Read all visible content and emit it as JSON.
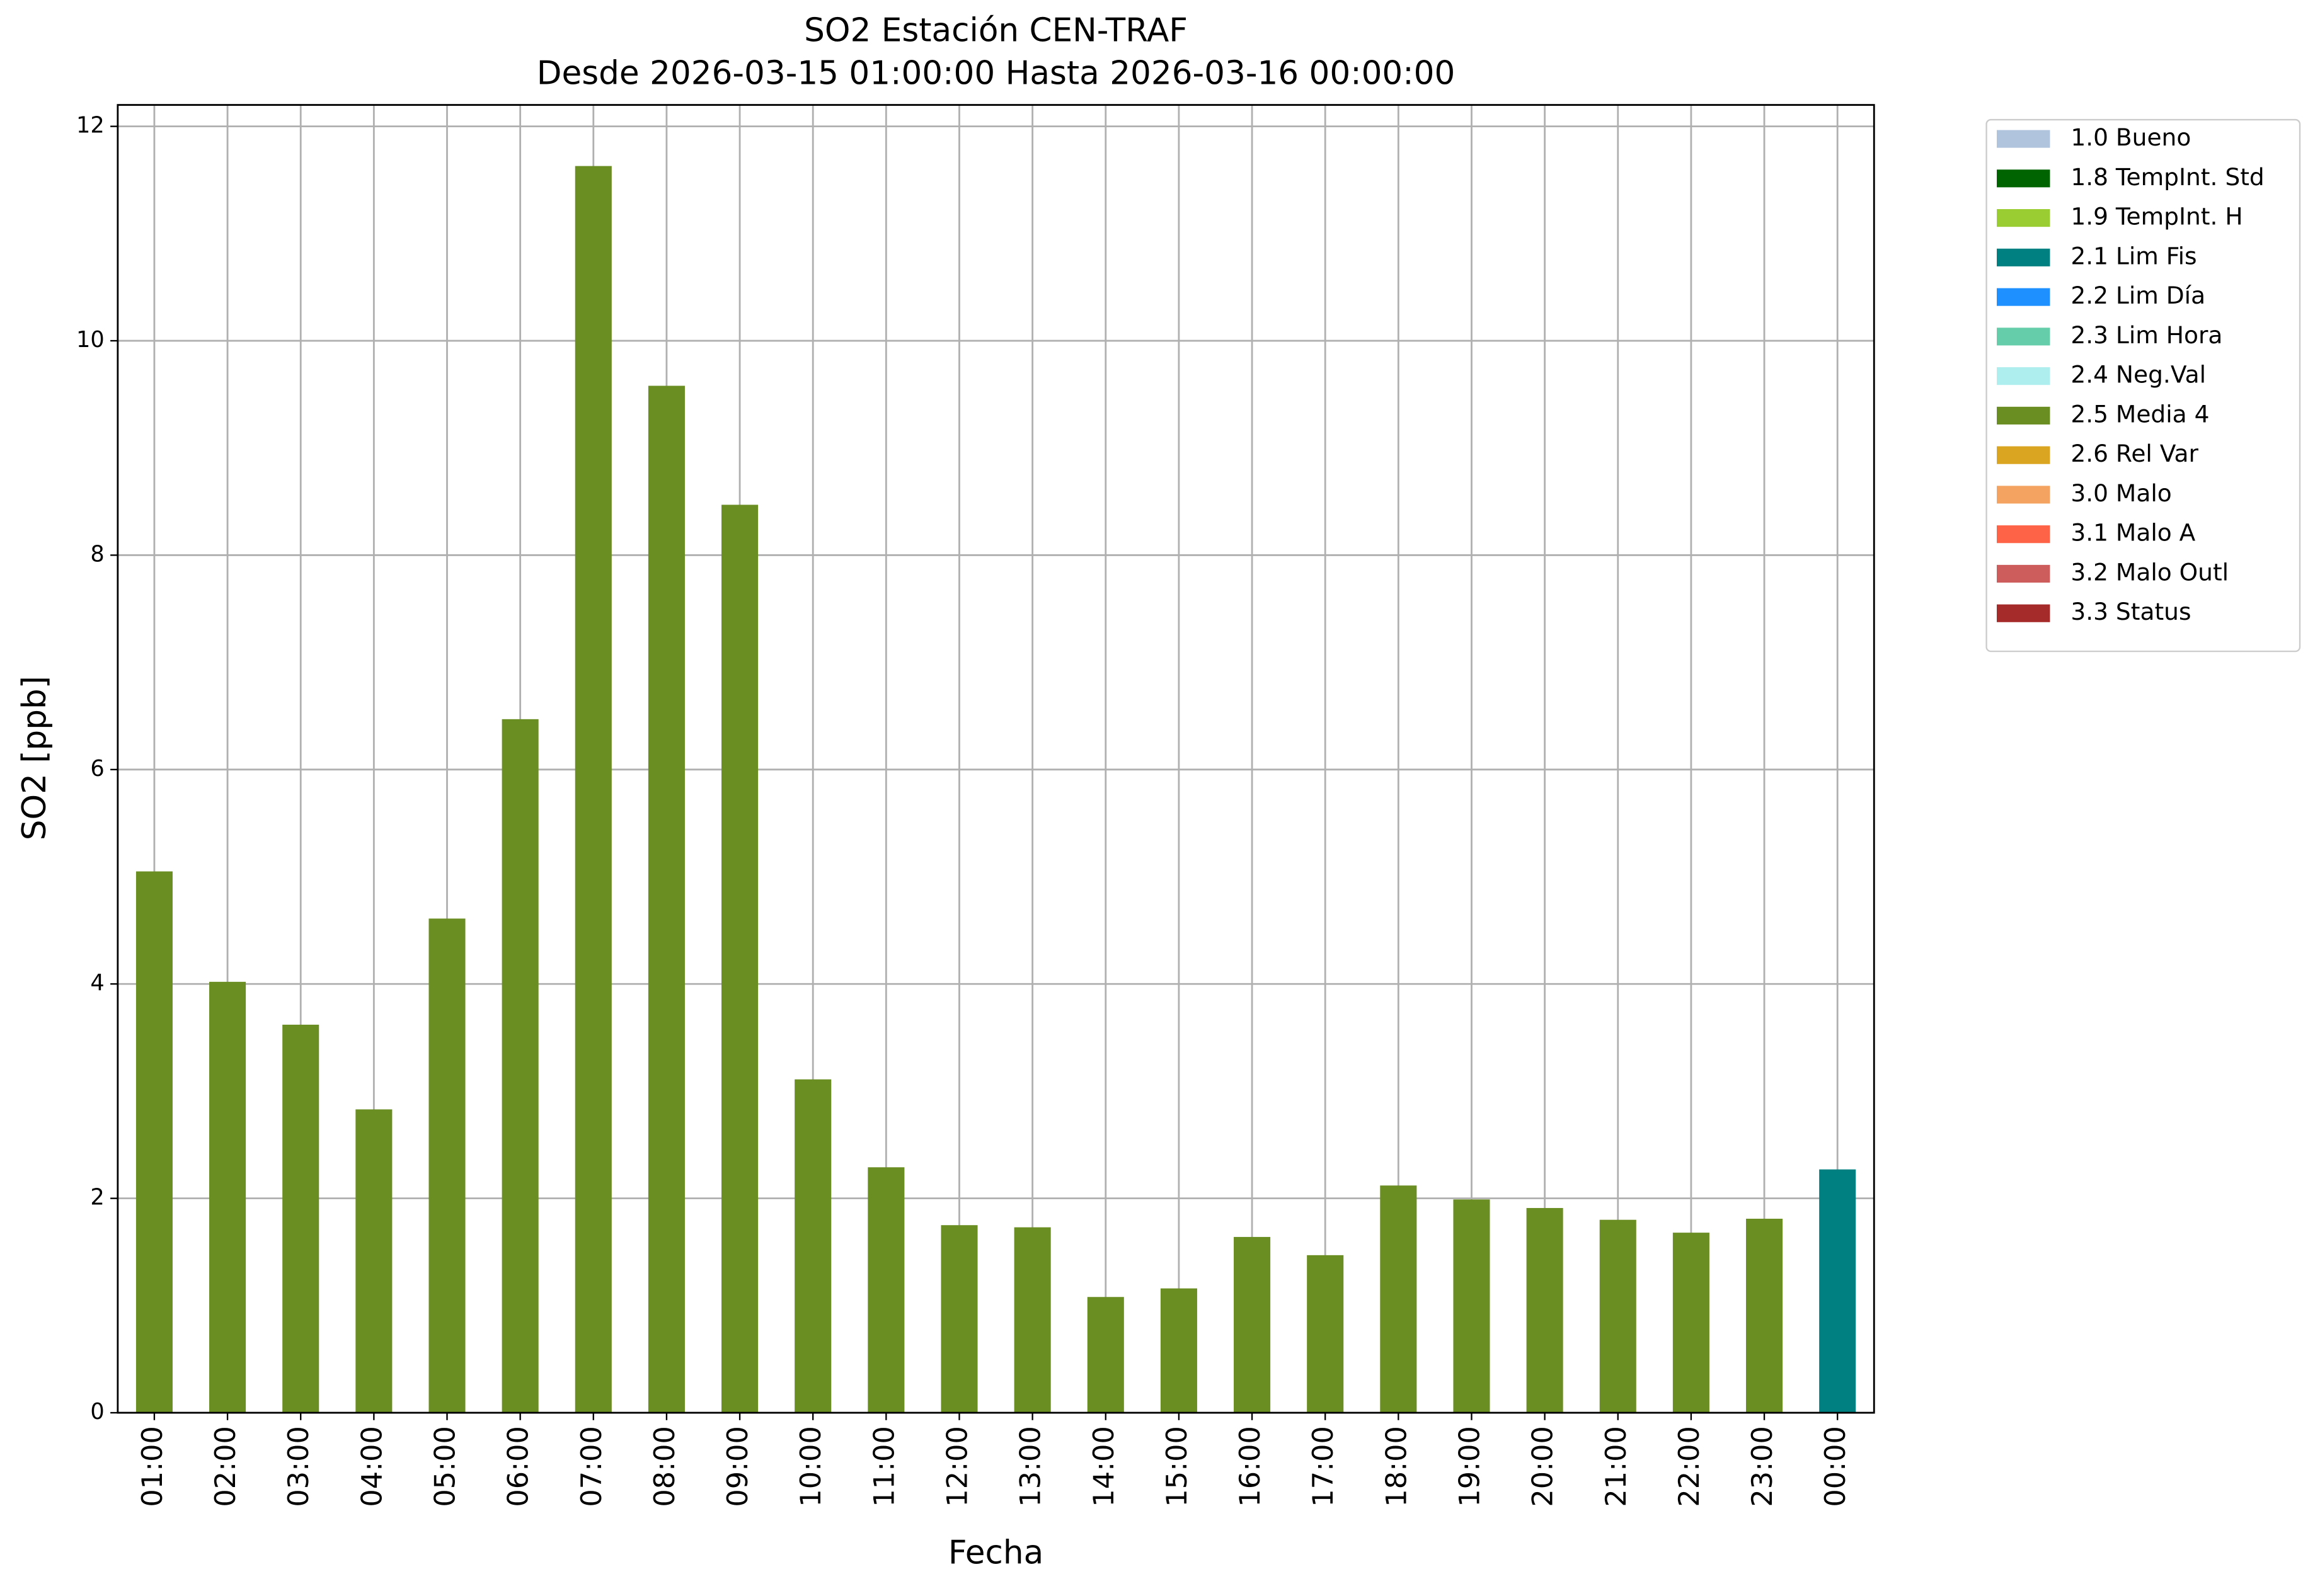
{
  "chart_data": {
    "type": "bar",
    "title": "SO2 Estación CEN-TRAF",
    "subtitle": "Desde 2026-03-15 01:00:00 Hasta 2026-03-16 00:00:00",
    "x_label": "Fecha",
    "y_label": "SO2 [ppb]",
    "categories": [
      "01:00",
      "02:00",
      "03:00",
      "04:00",
      "05:00",
      "06:00",
      "07:00",
      "08:00",
      "09:00",
      "10:00",
      "11:00",
      "12:00",
      "13:00",
      "14:00",
      "15:00",
      "16:00",
      "17:00",
      "18:00",
      "19:00",
      "20:00",
      "21:00",
      "22:00",
      "23:00",
      "00:00"
    ],
    "series": [
      {
        "name": "1.0 Bueno",
        "color": "#b0c4de",
        "values": [
          null,
          null,
          null,
          null,
          null,
          null,
          null,
          null,
          null,
          null,
          null,
          null,
          null,
          null,
          null,
          null,
          null,
          null,
          null,
          null,
          null,
          null,
          null,
          null
        ]
      },
      {
        "name": "1.8 TempInt. Std",
        "color": "#006400",
        "values": [
          null,
          null,
          null,
          null,
          null,
          null,
          null,
          null,
          null,
          null,
          null,
          null,
          null,
          null,
          null,
          null,
          null,
          null,
          null,
          null,
          null,
          null,
          null,
          null
        ]
      },
      {
        "name": "1.9 TempInt. H",
        "color": "#9acd32",
        "values": [
          null,
          null,
          null,
          null,
          null,
          null,
          null,
          null,
          null,
          null,
          null,
          null,
          null,
          null,
          null,
          null,
          null,
          null,
          null,
          null,
          null,
          null,
          null,
          null
        ]
      },
      {
        "name": "2.1 Lim Fis",
        "color": "#008080",
        "values": [
          null,
          null,
          null,
          null,
          null,
          null,
          null,
          null,
          null,
          null,
          null,
          null,
          null,
          null,
          null,
          null,
          null,
          null,
          null,
          null,
          null,
          null,
          null,
          2.27
        ]
      },
      {
        "name": "2.2 Lim Día",
        "color": "#1e90ff",
        "values": [
          null,
          null,
          null,
          null,
          null,
          null,
          null,
          null,
          null,
          null,
          null,
          null,
          null,
          null,
          null,
          null,
          null,
          null,
          null,
          null,
          null,
          null,
          null,
          null
        ]
      },
      {
        "name": "2.3 Lim Hora",
        "color": "#66cdaa",
        "values": [
          null,
          null,
          null,
          null,
          null,
          null,
          null,
          null,
          null,
          null,
          null,
          null,
          null,
          null,
          null,
          null,
          null,
          null,
          null,
          null,
          null,
          null,
          null,
          null
        ]
      },
      {
        "name": "2.4 Neg.Val",
        "color": "#afeeee",
        "values": [
          null,
          null,
          null,
          null,
          null,
          null,
          null,
          null,
          null,
          null,
          null,
          null,
          null,
          null,
          null,
          null,
          null,
          null,
          null,
          null,
          null,
          null,
          null,
          null
        ]
      },
      {
        "name": "2.5 Media 4",
        "color": "#6b8e23",
        "values": [
          5.05,
          4.02,
          3.62,
          2.83,
          4.61,
          6.47,
          11.63,
          9.58,
          8.47,
          3.11,
          2.29,
          1.75,
          1.73,
          1.08,
          1.16,
          1.64,
          1.47,
          2.12,
          1.99,
          1.91,
          1.8,
          1.68,
          1.81,
          null
        ]
      },
      {
        "name": "2.6 Rel Var",
        "color": "#daa520",
        "values": [
          null,
          null,
          null,
          null,
          null,
          null,
          null,
          null,
          null,
          null,
          null,
          null,
          null,
          null,
          null,
          null,
          null,
          null,
          null,
          null,
          null,
          null,
          null,
          null
        ]
      },
      {
        "name": "3.0 Malo",
        "color": "#f4a460",
        "values": [
          null,
          null,
          null,
          null,
          null,
          null,
          null,
          null,
          null,
          null,
          null,
          null,
          null,
          null,
          null,
          null,
          null,
          null,
          null,
          null,
          null,
          null,
          null,
          null
        ]
      },
      {
        "name": "3.1 Malo A",
        "color": "#ff6347",
        "values": [
          null,
          null,
          null,
          null,
          null,
          null,
          null,
          null,
          null,
          null,
          null,
          null,
          null,
          null,
          null,
          null,
          null,
          null,
          null,
          null,
          null,
          null,
          null,
          null
        ]
      },
      {
        "name": "3.2 Malo Outl",
        "color": "#cd5c5c",
        "values": [
          null,
          null,
          null,
          null,
          null,
          null,
          null,
          null,
          null,
          null,
          null,
          null,
          null,
          null,
          null,
          null,
          null,
          null,
          null,
          null,
          null,
          null,
          null,
          null
        ]
      },
      {
        "name": "3.3 Status",
        "color": "#a52a2a",
        "values": [
          null,
          null,
          null,
          null,
          null,
          null,
          null,
          null,
          null,
          null,
          null,
          null,
          null,
          null,
          null,
          null,
          null,
          null,
          null,
          null,
          null,
          null,
          null,
          null
        ]
      }
    ],
    "stacked": true,
    "ylim": [
      0,
      12.2
    ],
    "yticks": [
      0,
      2,
      4,
      6,
      8,
      10,
      12
    ],
    "grid": true,
    "legend": "outside-upper-right"
  }
}
